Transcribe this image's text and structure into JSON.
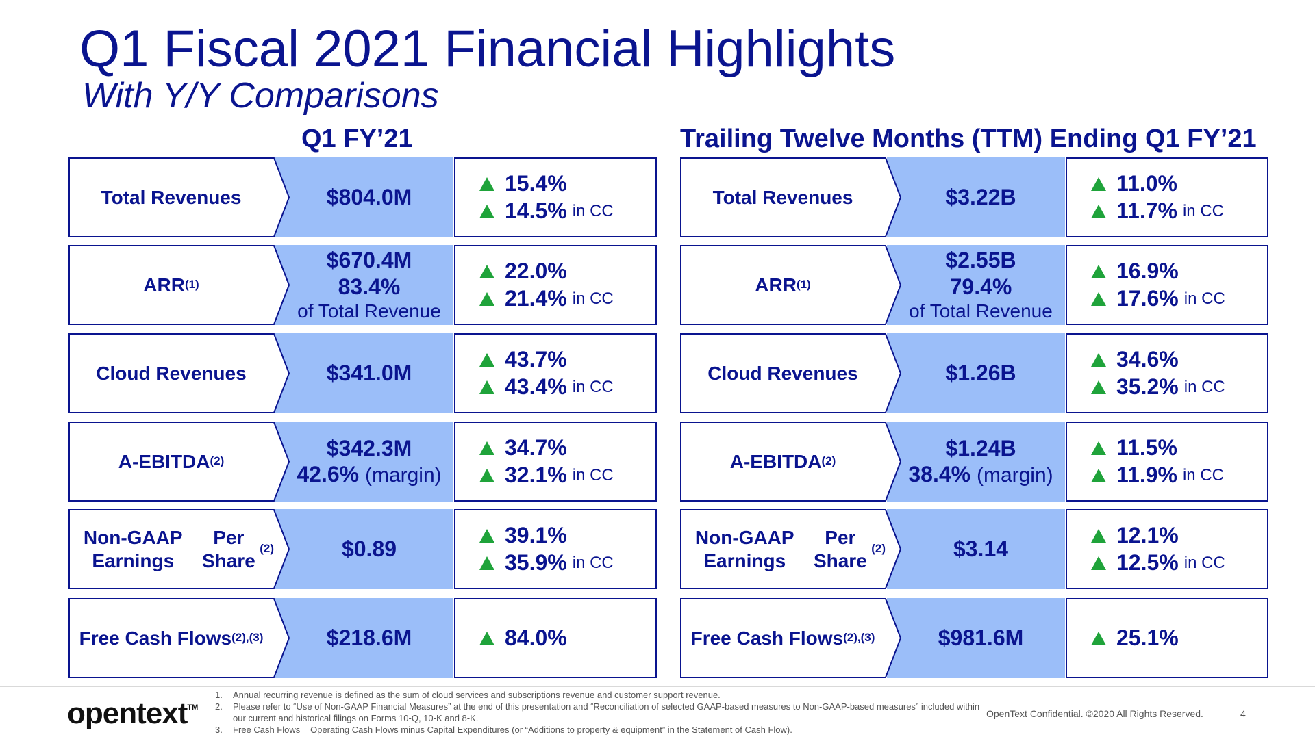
{
  "title": "Q1 Fiscal 2021 Financial Highlights",
  "subtitle": "With Y/Y Comparisons",
  "panels": [
    {
      "heading": "Q1 FY’21",
      "rows": [
        {
          "label": "Total Revenues",
          "sup": "",
          "value": "$804.0M",
          "value2": "",
          "value2_suffix": "",
          "value3": "",
          "changes": [
            {
              "pct": "15.4%",
              "cc": ""
            },
            {
              "pct": "14.5%",
              "cc": "in CC"
            }
          ]
        },
        {
          "label": "ARR",
          "sup": "(1)",
          "value": "$670.4M",
          "value2": "83.4%",
          "value2_suffix": "",
          "value3": "of Total Revenue",
          "changes": [
            {
              "pct": "22.0%",
              "cc": ""
            },
            {
              "pct": "21.4%",
              "cc": "in CC"
            }
          ]
        },
        {
          "label": "Cloud Revenues",
          "sup": "",
          "value": "$341.0M",
          "value2": "",
          "value2_suffix": "",
          "value3": "",
          "changes": [
            {
              "pct": "43.7%",
              "cc": ""
            },
            {
              "pct": "43.4%",
              "cc": "in CC"
            }
          ]
        },
        {
          "label": "A-EBITDA",
          "sup": "(2)",
          "value": "$342.3M",
          "value2": "42.6%",
          "value2_suffix": "(margin)",
          "value3": "",
          "changes": [
            {
              "pct": "34.7%",
              "cc": ""
            },
            {
              "pct": "32.1%",
              "cc": "in CC"
            }
          ]
        },
        {
          "label": "Non-GAAP Earnings",
          "label2": "Per Share",
          "sup": "(2)",
          "value": "$0.89",
          "value2": "",
          "value2_suffix": "",
          "value3": "",
          "changes": [
            {
              "pct": "39.1%",
              "cc": ""
            },
            {
              "pct": "35.9%",
              "cc": "in CC"
            }
          ]
        },
        {
          "label": "Free Cash Flows",
          "sup": "(2),(3)",
          "value": "$218.6M",
          "value2": "",
          "value2_suffix": "",
          "value3": "",
          "changes": [
            {
              "pct": "84.0%",
              "cc": ""
            }
          ]
        }
      ]
    },
    {
      "heading": "Trailing Twelve Months (TTM) Ending Q1 FY’21",
      "rows": [
        {
          "label": "Total Revenues",
          "sup": "",
          "value": "$3.22B",
          "value2": "",
          "value2_suffix": "",
          "value3": "",
          "changes": [
            {
              "pct": "11.0%",
              "cc": ""
            },
            {
              "pct": "11.7%",
              "cc": "in CC"
            }
          ]
        },
        {
          "label": "ARR",
          "sup": "(1)",
          "value": "$2.55B",
          "value2": "79.4%",
          "value2_suffix": "",
          "value3": "of Total Revenue",
          "changes": [
            {
              "pct": "16.9%",
              "cc": ""
            },
            {
              "pct": "17.6%",
              "cc": "in CC"
            }
          ]
        },
        {
          "label": "Cloud Revenues",
          "sup": "",
          "value": "$1.26B",
          "value2": "",
          "value2_suffix": "",
          "value3": "",
          "changes": [
            {
              "pct": "34.6%",
              "cc": ""
            },
            {
              "pct": "35.2%",
              "cc": "in CC"
            }
          ]
        },
        {
          "label": "A-EBITDA",
          "sup": "(2)",
          "value": "$1.24B",
          "value2": "38.4%",
          "value2_suffix": "(margin)",
          "value3": "",
          "changes": [
            {
              "pct": "11.5%",
              "cc": ""
            },
            {
              "pct": "11.9%",
              "cc": "in CC"
            }
          ]
        },
        {
          "label": "Non-GAAP Earnings",
          "label2": "Per Share",
          "sup": "(2)",
          "value": "$3.14",
          "value2": "",
          "value2_suffix": "",
          "value3": "",
          "changes": [
            {
              "pct": "12.1%",
              "cc": ""
            },
            {
              "pct": "12.5%",
              "cc": "in CC"
            }
          ]
        },
        {
          "label": "Free Cash Flows",
          "sup": "(2),(3)",
          "value": "$981.6M",
          "value2": "",
          "value2_suffix": "",
          "value3": "",
          "changes": [
            {
              "pct": "25.1%",
              "cc": ""
            }
          ]
        }
      ]
    }
  ],
  "footer": {
    "logo": "opentext",
    "logo_tm": "TM",
    "footnotes": [
      {
        "num": "1.",
        "text": "Annual recurring revenue is defined as the sum of cloud services and subscriptions revenue and customer support revenue."
      },
      {
        "num": "2.",
        "text": "Please refer to “Use of Non-GAAP Financial Measures” at the end of this presentation and “Reconciliation of selected GAAP-based measures to Non-GAAP-based measures” included within our current and historical filings on Forms 10-Q, 10-K and 8-K."
      },
      {
        "num": "3.",
        "text": "Free Cash Flows = Operating Cash Flows minus Capital Expenditures (or “Additions to property & equipment” in the Statement of Cash Flow)."
      }
    ],
    "confidential": "OpenText Confidential. ©2020 All Rights Reserved.",
    "page_number": "4"
  },
  "colors": {
    "navy": "#0a148f",
    "value_fill": "#9bbef9",
    "arrow_up": "#1fa33a"
  }
}
